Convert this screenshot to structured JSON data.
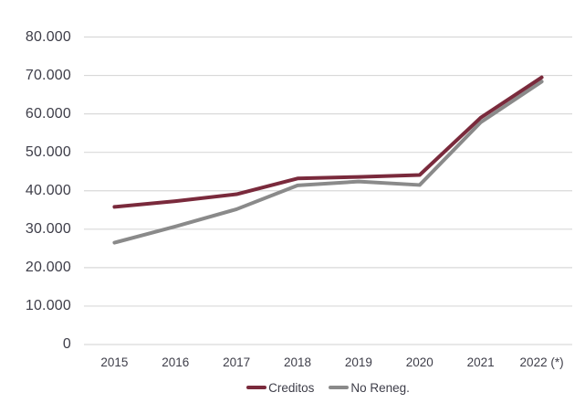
{
  "chart_data": {
    "type": "line",
    "title": "",
    "xlabel": "",
    "ylabel": "",
    "categories": [
      "2015",
      "2016",
      "2017",
      "2018",
      "2019",
      "2020",
      "2021",
      "2022 (*)"
    ],
    "series": [
      {
        "name": "Creditos",
        "color": "#7a2a3c",
        "values": [
          35800,
          37300,
          39100,
          43200,
          43600,
          44100,
          59000,
          69500
        ]
      },
      {
        "name": "No Reneg.",
        "color": "#8a8a8a",
        "values": [
          26500,
          30700,
          35200,
          41400,
          42400,
          41500,
          57800,
          68400
        ]
      }
    ],
    "ylim": [
      0,
      80000
    ],
    "ytick_interval": 10000,
    "ytick_labels": [
      "0",
      "10.000",
      "20.000",
      "30.000",
      "40.000",
      "50.000",
      "60.000",
      "70.000",
      "80.000"
    ],
    "grid": "horizontal-only",
    "legend_position": "bottom-center",
    "colors": {
      "gridline": "#d9d9d9",
      "text": "#3e3e49",
      "background": "#ffffff"
    }
  }
}
